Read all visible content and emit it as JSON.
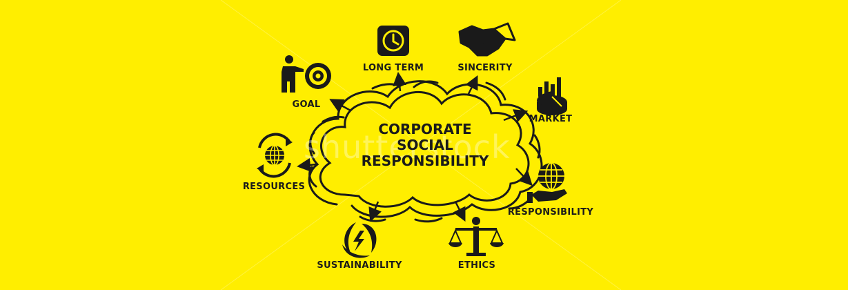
{
  "center": {
    "line1": "CORPORATE",
    "line2": "SOCIAL",
    "line3": "RESPONSIBILITY"
  },
  "watermark": "shutterstock",
  "nodes": {
    "long_term": "LONG TERM",
    "sincerity": "SINCERITY",
    "goal": "GOAL",
    "market": "MARKET",
    "resources": "RESOURCES",
    "responsibility": "RESPONSIBILITY",
    "sustainability": "SUSTAINABILITY",
    "ethics": "ETHICS"
  },
  "colors": {
    "background": "#FFEE00",
    "ink": "#1a1a1a"
  },
  "icons": [
    "clock-icon",
    "handshake-icon",
    "target-icon",
    "pie-chart-icon",
    "recycle-globe-icon",
    "globe-hand-icon",
    "energy-leaves-icon",
    "scales-icon"
  ]
}
